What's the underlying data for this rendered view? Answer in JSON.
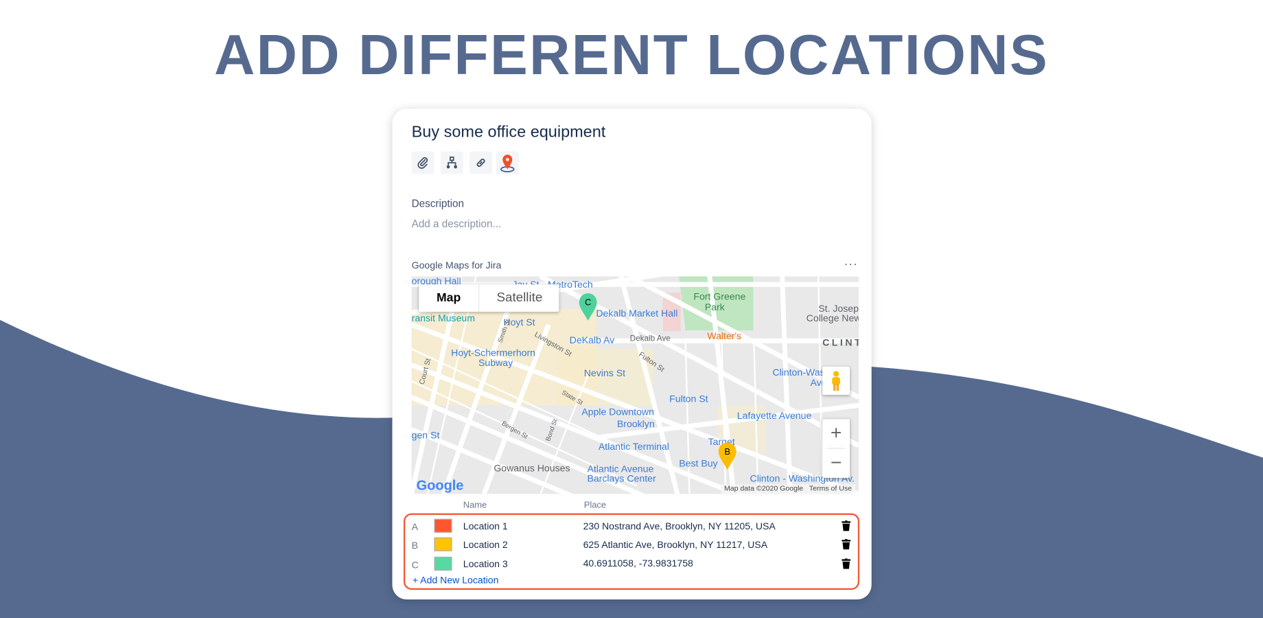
{
  "headline": "ADD DIFFERENT LOCATIONS",
  "colors": {
    "brand": "#566a8f",
    "highlight": "#f25a35",
    "link": "#0052cc"
  },
  "issue": {
    "title": "Buy some office equipment",
    "toolbar": [
      "paperclip-icon",
      "hierarchy-icon",
      "link-icon",
      "map-pin-icon"
    ],
    "description_label": "Description",
    "description_placeholder": "Add a description..."
  },
  "maps_panel": {
    "title": "Google Maps for Jira",
    "more": "···",
    "map_type": {
      "options": [
        "Map",
        "Satellite"
      ],
      "selected": "Map"
    },
    "labels": [
      "orough Hall",
      "Jay St - MetroTech",
      "Dekalb Market Hall",
      "Fort Greene",
      "Park",
      "St. Joseph",
      "College New",
      "ransit Museum",
      "Hoyt St",
      "DeKalb Av",
      "Dekalb Ave",
      "Walter's",
      "CLINT",
      "Hoyt-Schermerhorn",
      "Subway",
      "Nevins St",
      "Fulton St",
      "Clinton-Washin",
      "Ave",
      "Fulton St",
      "Apple Downtown",
      "Brooklyn",
      "Lafayette Avenue",
      "gen St",
      "Atlantic Terminal",
      "Target",
      "Best Buy",
      "Gowanus Houses",
      "Atlantic Avenue",
      "Barclays Center",
      "Clinton - Washington Av.",
      "Smith St",
      "Livingston St",
      "Court St",
      "State St",
      "Bond St",
      "Bergen St"
    ],
    "markers": [
      {
        "letter": "C",
        "color": "#4fd19b"
      },
      {
        "letter": "B",
        "color": "#fbbc04"
      }
    ],
    "google_logo": "Google",
    "attribution": "Map data ©2020 Google",
    "terms": "Terms of Use",
    "zoom_in": "+",
    "zoom_out": "−"
  },
  "table": {
    "headers": {
      "name": "Name",
      "place": "Place"
    },
    "rows": [
      {
        "letter": "A",
        "color": "#ff5630",
        "name": "Location 1",
        "place": "230 Nostrand Ave, Brooklyn, NY 11205, USA"
      },
      {
        "letter": "B",
        "color": "#ffc400",
        "name": "Location 2",
        "place": "625 Atlantic Ave, Brooklyn, NY 11217, USA"
      },
      {
        "letter": "C",
        "color": "#57d9a3",
        "name": "Location 3",
        "place": "40.6911058, -73.9831758"
      }
    ],
    "add_label": "+ Add New Location"
  }
}
